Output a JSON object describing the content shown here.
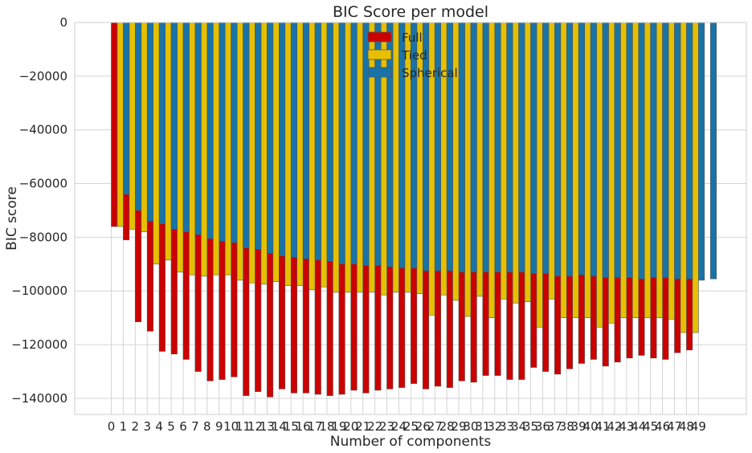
{
  "chart_data": {
    "type": "bar",
    "title": "BIC Score per model",
    "xlabel": "Number of components",
    "ylabel": "BIC score",
    "ylim": [
      -146000,
      0
    ],
    "yticks": [
      0,
      -20000,
      -40000,
      -60000,
      -80000,
      -100000,
      -120000,
      -140000
    ],
    "ytick_labels": [
      "0",
      "−20000",
      "−40000",
      "−60000",
      "−80000",
      "−100000",
      "−120000",
      "−140000"
    ],
    "categories": [
      "0",
      "1",
      "2",
      "3",
      "4",
      "5",
      "6",
      "7",
      "8",
      "9",
      "10",
      "11",
      "12",
      "13",
      "14",
      "15",
      "16",
      "17",
      "18",
      "19",
      "20",
      "21",
      "22",
      "23",
      "24",
      "25",
      "26",
      "27",
      "28",
      "29",
      "30",
      "31",
      "32",
      "33",
      "34",
      "35",
      "36",
      "37",
      "38",
      "39",
      "40",
      "41",
      "42",
      "43",
      "44",
      "45",
      "46",
      "47",
      "48",
      "49"
    ],
    "grid": true,
    "legend_position": "top-center",
    "series": [
      {
        "name": "Full",
        "color": "#cc0000",
        "values": [
          -76000,
          -81000,
          -111500,
          -115000,
          -122500,
          -123500,
          -125500,
          -130000,
          -133500,
          -133000,
          -132000,
          -139000,
          -137500,
          -139500,
          -136500,
          -138000,
          -138000,
          -138500,
          -139000,
          -138500,
          -137000,
          -138000,
          -137000,
          -136500,
          -136000,
          -134500,
          -136500,
          -135500,
          -136000,
          -133500,
          -134000,
          -131500,
          -131500,
          -133000,
          -133000,
          -128500,
          -130000,
          -131000,
          -129000,
          -127000,
          -125500,
          -128000,
          -126500,
          -125000,
          -124000,
          -125000,
          -125500,
          -123000,
          -122000,
          null
        ]
      },
      {
        "name": "Tied",
        "color": "#e6c000",
        "values": [
          -76000,
          -77000,
          -78000,
          -90000,
          -88500,
          -93000,
          -94000,
          -94500,
          -94000,
          -94000,
          -96000,
          -97000,
          -97500,
          -96500,
          -98000,
          -98000,
          -99500,
          -98500,
          -100500,
          -100500,
          -100500,
          -100500,
          -101500,
          -100500,
          -100500,
          -101000,
          -109000,
          -101500,
          -103500,
          -109500,
          -102000,
          -110000,
          -103000,
          -104500,
          -104000,
          -113500,
          -103000,
          -110000,
          -110000,
          -110000,
          -113500,
          -112000,
          -110000,
          -110000,
          -110000,
          -110000,
          -110500,
          -115500,
          -115500,
          null
        ]
      },
      {
        "name": "Spherical",
        "color": "#1874a8",
        "values": [
          -64000,
          -70000,
          -74000,
          -75000,
          -77000,
          -78000,
          -79000,
          -80500,
          -81500,
          -82000,
          -84000,
          -84500,
          -86000,
          -87000,
          -87500,
          -88000,
          -88500,
          -89000,
          -90000,
          -90000,
          -90500,
          -90500,
          -91000,
          -91500,
          -91500,
          -92500,
          -92500,
          -92500,
          -93000,
          -93000,
          -93000,
          -93000,
          -93000,
          -93000,
          -93500,
          -93500,
          -94500,
          -94500,
          -94000,
          -94500,
          -95000,
          -95000,
          -95000,
          -95500,
          -95000,
          -95000,
          -95500,
          -95500,
          -96000,
          -95500
        ]
      }
    ]
  }
}
